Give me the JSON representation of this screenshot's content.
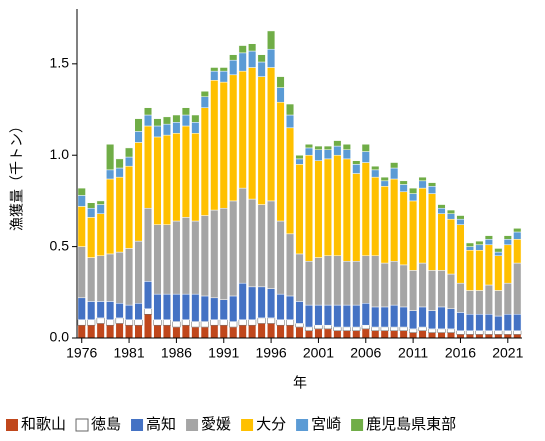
{
  "chart_data": {
    "type": "stacked_bar",
    "y_label": "漁獲量（千トン）",
    "x_label": "年",
    "categories": [
      "1976",
      null,
      null,
      null,
      null,
      "1981",
      null,
      null,
      null,
      null,
      "1986",
      null,
      null,
      null,
      null,
      "1991",
      null,
      null,
      null,
      null,
      "1996",
      null,
      null,
      null,
      null,
      "2001",
      null,
      null,
      null,
      null,
      "2006",
      null,
      null,
      null,
      null,
      "2011",
      null,
      null,
      null,
      null,
      "2016",
      null,
      null,
      null,
      null,
      "2021",
      null
    ],
    "ylim": [
      0,
      1.8
    ],
    "yticks": [
      {
        "value": 0,
        "label": "0.0"
      },
      0.5,
      {
        "value": 1,
        "label": "1.0"
      },
      1.5
    ],
    "legend": "bottom",
    "series": [
      {
        "name": "和歌山",
        "color": "#c0471c",
        "values": [
          0.07,
          0.07,
          0.08,
          0.07,
          0.08,
          0.07,
          0.07,
          0.13,
          0.07,
          0.07,
          0.06,
          0.07,
          0.06,
          0.06,
          0.07,
          0.07,
          0.06,
          0.07,
          0.07,
          0.08,
          0.08,
          0.07,
          0.07,
          0.06,
          0.04,
          0.05,
          0.05,
          0.04,
          0.04,
          0.04,
          0.05,
          0.04,
          0.04,
          0.04,
          0.04,
          0.03,
          0.04,
          0.03,
          0.03,
          0.03,
          0.02,
          0.02,
          0.02,
          0.02,
          0.02,
          0.02,
          0.02
        ]
      },
      {
        "name": "徳島",
        "color": "#ffffff",
        "values": [
          0.03,
          0.03,
          0.03,
          0.03,
          0.03,
          0.03,
          0.03,
          0.03,
          0.03,
          0.03,
          0.03,
          0.03,
          0.03,
          0.03,
          0.03,
          0.03,
          0.03,
          0.03,
          0.03,
          0.03,
          0.03,
          0.03,
          0.03,
          0.02,
          0.02,
          0.02,
          0.02,
          0.02,
          0.02,
          0.02,
          0.02,
          0.02,
          0.02,
          0.02,
          0.02,
          0.02,
          0.02,
          0.02,
          0.02,
          0.02,
          0.02,
          0.02,
          0.02,
          0.02,
          0.02,
          0.02,
          0.02
        ]
      },
      {
        "name": "高知",
        "color": "#4472c4",
        "values": [
          0.12,
          0.1,
          0.09,
          0.1,
          0.08,
          0.08,
          0.09,
          0.15,
          0.14,
          0.14,
          0.15,
          0.14,
          0.15,
          0.14,
          0.12,
          0.11,
          0.14,
          0.2,
          0.18,
          0.17,
          0.16,
          0.14,
          0.13,
          0.12,
          0.12,
          0.11,
          0.11,
          0.12,
          0.12,
          0.12,
          0.12,
          0.11,
          0.11,
          0.12,
          0.11,
          0.1,
          0.11,
          0.1,
          0.12,
          0.11,
          0.1,
          0.09,
          0.09,
          0.09,
          0.08,
          0.09,
          0.09
        ]
      },
      {
        "name": "愛媛",
        "color": "#a5a5a5",
        "values": [
          0.28,
          0.24,
          0.25,
          0.26,
          0.28,
          0.31,
          0.34,
          0.4,
          0.38,
          0.38,
          0.4,
          0.42,
          0.4,
          0.44,
          0.48,
          0.5,
          0.52,
          0.52,
          0.48,
          0.45,
          0.48,
          0.4,
          0.34,
          0.26,
          0.24,
          0.26,
          0.27,
          0.27,
          0.24,
          0.24,
          0.26,
          0.28,
          0.24,
          0.24,
          0.23,
          0.22,
          0.24,
          0.22,
          0.2,
          0.19,
          0.16,
          0.13,
          0.13,
          0.16,
          0.14,
          0.17,
          0.28
        ]
      },
      {
        "name": "大分",
        "color": "#ffc000",
        "values": [
          0.22,
          0.22,
          0.23,
          0.41,
          0.41,
          0.45,
          0.54,
          0.45,
          0.48,
          0.49,
          0.48,
          0.5,
          0.48,
          0.59,
          0.71,
          0.69,
          0.69,
          0.64,
          0.72,
          0.7,
          0.73,
          0.65,
          0.58,
          0.49,
          0.58,
          0.53,
          0.53,
          0.55,
          0.56,
          0.48,
          0.51,
          0.43,
          0.42,
          0.45,
          0.4,
          0.38,
          0.41,
          0.42,
          0.31,
          0.3,
          0.32,
          0.22,
          0.22,
          0.22,
          0.19,
          0.21,
          0.13
        ]
      },
      {
        "name": "宮崎",
        "color": "#5b9bd5",
        "values": [
          0.06,
          0.05,
          0.05,
          0.05,
          0.05,
          0.05,
          0.06,
          0.06,
          0.06,
          0.06,
          0.06,
          0.06,
          0.06,
          0.06,
          0.05,
          0.06,
          0.08,
          0.1,
          0.09,
          0.08,
          0.1,
          0.08,
          0.07,
          0.03,
          0.04,
          0.06,
          0.05,
          0.05,
          0.05,
          0.05,
          0.06,
          0.04,
          0.03,
          0.06,
          0.04,
          0.04,
          0.04,
          0.04,
          0.03,
          0.03,
          0.03,
          0.02,
          0.03,
          0.03,
          0.02,
          0.03,
          0.04
        ]
      },
      {
        "name": "鹿児島県東部",
        "color": "#70ad47",
        "values": [
          0.04,
          0.03,
          0.02,
          0.14,
          0.05,
          0.05,
          0.07,
          0.04,
          0.04,
          0.04,
          0.04,
          0.04,
          0.04,
          0.03,
          0.02,
          0.02,
          0.03,
          0.04,
          0.04,
          0.04,
          0.1,
          0.06,
          0.06,
          0.02,
          0.02,
          0.02,
          0.02,
          0.03,
          0.03,
          0.02,
          0.04,
          0.02,
          0.02,
          0.03,
          0.02,
          0.03,
          0.02,
          0.02,
          0.02,
          0.02,
          0.02,
          0.02,
          0.02,
          0.02,
          0.02,
          0.02,
          0.02
        ]
      }
    ]
  }
}
